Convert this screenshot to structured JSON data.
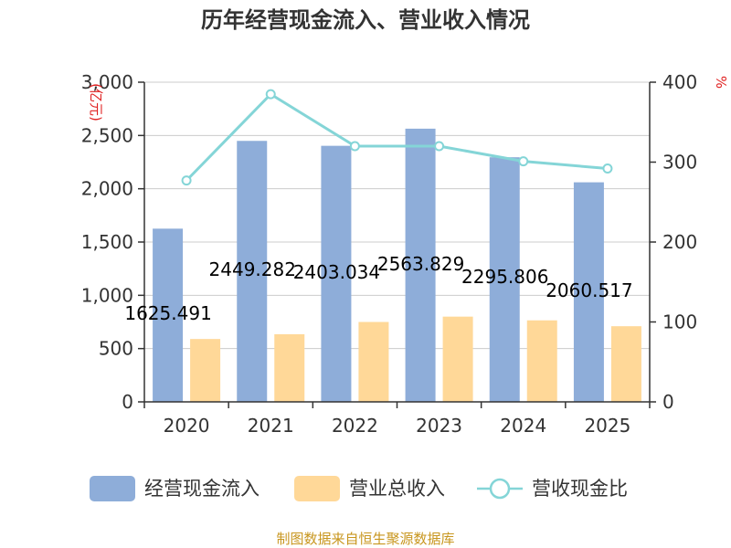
{
  "chart_data": {
    "type": "bar",
    "title": "历年经营现金流入、营业收入情况",
    "categories": [
      "2020",
      "2021",
      "2022",
      "2023",
      "2024",
      "2025"
    ],
    "series": [
      {
        "name": "经营现金流入",
        "type": "bar",
        "axis": "left",
        "color": "#8eadd9",
        "values": [
          1625.491,
          2449.282,
          2403.034,
          2563.829,
          2295.806,
          2060.517
        ]
      },
      {
        "name": "营业总收入",
        "type": "bar",
        "axis": "left",
        "color": "#ffd898",
        "values": [
          590,
          635,
          750,
          800,
          765,
          710
        ]
      },
      {
        "name": "营收现金比",
        "type": "line",
        "axis": "right",
        "color": "#84d5d7",
        "values": [
          277,
          385,
          320,
          320,
          301,
          292
        ]
      }
    ],
    "data_labels": [
      "1625.491",
      "2449.282",
      "2403.034",
      "2563.829",
      "2295.806",
      "2060.517"
    ],
    "y_left": {
      "unit": "(亿元)",
      "range": [
        0,
        3000
      ],
      "ticks": [
        "0",
        "500",
        "1,000",
        "1,500",
        "2,000",
        "2,500",
        "3,000"
      ]
    },
    "y_right": {
      "unit": "%",
      "range": [
        0,
        400
      ],
      "ticks": [
        "0",
        "100",
        "200",
        "300",
        "400"
      ]
    },
    "grid": true,
    "legend_position": "bottom",
    "source": "制图数据来自恒生聚源数据库",
    "colors": {
      "unit": "#e02020",
      "source": "#c8961e",
      "grid": "#cccccc",
      "axis": "#333333"
    }
  }
}
